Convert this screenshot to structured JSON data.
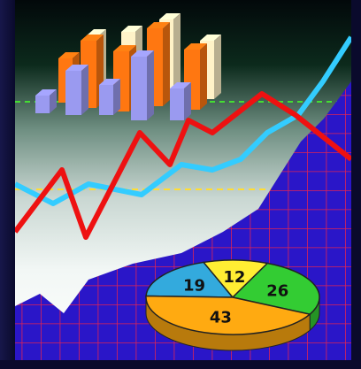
{
  "illustration": {
    "pie": {
      "values": [
        19,
        12,
        26,
        43
      ],
      "colors": [
        "#33aadd",
        "#ffee33",
        "#33cc33",
        "#ffaa11"
      ],
      "labels": [
        "19",
        "12",
        "26",
        "43"
      ]
    },
    "colors": {
      "frame": "#0c0c3a",
      "grid_background": "#2a16c8",
      "grid_lines": "#dd2255",
      "red_line": "#ee1111",
      "blue_line": "#33ccff",
      "bars_orange": "#ff7711",
      "bars_cream": "#fff3c8",
      "bars_lavender": "#9a9af0",
      "green_dash": "#44dd33",
      "yellow_dash": "#ffdd33"
    }
  }
}
